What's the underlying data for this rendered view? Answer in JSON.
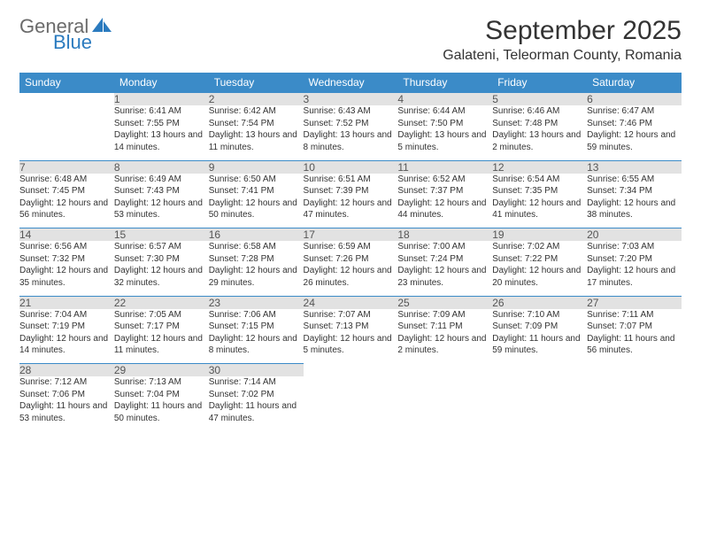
{
  "brand": {
    "name1": "General",
    "name2": "Blue"
  },
  "title": "September 2025",
  "location": "Galateni, Teleorman County, Romania",
  "colors": {
    "header_bg": "#3b8bc8",
    "header_text": "#ffffff",
    "daynum_bg": "#e2e2e2",
    "daynum_border": "#3b8bc8",
    "text": "#333333",
    "brand_gray": "#6b6b6b",
    "brand_blue": "#2b7bbf"
  },
  "typography": {
    "title_fontsize": 30,
    "location_fontsize": 16,
    "header_fontsize": 12,
    "daynum_fontsize": 12,
    "cell_fontsize": 10
  },
  "days_of_week": [
    "Sunday",
    "Monday",
    "Tuesday",
    "Wednesday",
    "Thursday",
    "Friday",
    "Saturday"
  ],
  "weeks": [
    {
      "nums": [
        "",
        "1",
        "2",
        "3",
        "4",
        "5",
        "6"
      ],
      "cells": [
        {
          "empty": true
        },
        {
          "sunrise": "Sunrise: 6:41 AM",
          "sunset": "Sunset: 7:55 PM",
          "daylight": "Daylight: 13 hours and 14 minutes."
        },
        {
          "sunrise": "Sunrise: 6:42 AM",
          "sunset": "Sunset: 7:54 PM",
          "daylight": "Daylight: 13 hours and 11 minutes."
        },
        {
          "sunrise": "Sunrise: 6:43 AM",
          "sunset": "Sunset: 7:52 PM",
          "daylight": "Daylight: 13 hours and 8 minutes."
        },
        {
          "sunrise": "Sunrise: 6:44 AM",
          "sunset": "Sunset: 7:50 PM",
          "daylight": "Daylight: 13 hours and 5 minutes."
        },
        {
          "sunrise": "Sunrise: 6:46 AM",
          "sunset": "Sunset: 7:48 PM",
          "daylight": "Daylight: 13 hours and 2 minutes."
        },
        {
          "sunrise": "Sunrise: 6:47 AM",
          "sunset": "Sunset: 7:46 PM",
          "daylight": "Daylight: 12 hours and 59 minutes."
        }
      ]
    },
    {
      "nums": [
        "7",
        "8",
        "9",
        "10",
        "11",
        "12",
        "13"
      ],
      "cells": [
        {
          "sunrise": "Sunrise: 6:48 AM",
          "sunset": "Sunset: 7:45 PM",
          "daylight": "Daylight: 12 hours and 56 minutes."
        },
        {
          "sunrise": "Sunrise: 6:49 AM",
          "sunset": "Sunset: 7:43 PM",
          "daylight": "Daylight: 12 hours and 53 minutes."
        },
        {
          "sunrise": "Sunrise: 6:50 AM",
          "sunset": "Sunset: 7:41 PM",
          "daylight": "Daylight: 12 hours and 50 minutes."
        },
        {
          "sunrise": "Sunrise: 6:51 AM",
          "sunset": "Sunset: 7:39 PM",
          "daylight": "Daylight: 12 hours and 47 minutes."
        },
        {
          "sunrise": "Sunrise: 6:52 AM",
          "sunset": "Sunset: 7:37 PM",
          "daylight": "Daylight: 12 hours and 44 minutes."
        },
        {
          "sunrise": "Sunrise: 6:54 AM",
          "sunset": "Sunset: 7:35 PM",
          "daylight": "Daylight: 12 hours and 41 minutes."
        },
        {
          "sunrise": "Sunrise: 6:55 AM",
          "sunset": "Sunset: 7:34 PM",
          "daylight": "Daylight: 12 hours and 38 minutes."
        }
      ]
    },
    {
      "nums": [
        "14",
        "15",
        "16",
        "17",
        "18",
        "19",
        "20"
      ],
      "cells": [
        {
          "sunrise": "Sunrise: 6:56 AM",
          "sunset": "Sunset: 7:32 PM",
          "daylight": "Daylight: 12 hours and 35 minutes."
        },
        {
          "sunrise": "Sunrise: 6:57 AM",
          "sunset": "Sunset: 7:30 PM",
          "daylight": "Daylight: 12 hours and 32 minutes."
        },
        {
          "sunrise": "Sunrise: 6:58 AM",
          "sunset": "Sunset: 7:28 PM",
          "daylight": "Daylight: 12 hours and 29 minutes."
        },
        {
          "sunrise": "Sunrise: 6:59 AM",
          "sunset": "Sunset: 7:26 PM",
          "daylight": "Daylight: 12 hours and 26 minutes."
        },
        {
          "sunrise": "Sunrise: 7:00 AM",
          "sunset": "Sunset: 7:24 PM",
          "daylight": "Daylight: 12 hours and 23 minutes."
        },
        {
          "sunrise": "Sunrise: 7:02 AM",
          "sunset": "Sunset: 7:22 PM",
          "daylight": "Daylight: 12 hours and 20 minutes."
        },
        {
          "sunrise": "Sunrise: 7:03 AM",
          "sunset": "Sunset: 7:20 PM",
          "daylight": "Daylight: 12 hours and 17 minutes."
        }
      ]
    },
    {
      "nums": [
        "21",
        "22",
        "23",
        "24",
        "25",
        "26",
        "27"
      ],
      "cells": [
        {
          "sunrise": "Sunrise: 7:04 AM",
          "sunset": "Sunset: 7:19 PM",
          "daylight": "Daylight: 12 hours and 14 minutes."
        },
        {
          "sunrise": "Sunrise: 7:05 AM",
          "sunset": "Sunset: 7:17 PM",
          "daylight": "Daylight: 12 hours and 11 minutes."
        },
        {
          "sunrise": "Sunrise: 7:06 AM",
          "sunset": "Sunset: 7:15 PM",
          "daylight": "Daylight: 12 hours and 8 minutes."
        },
        {
          "sunrise": "Sunrise: 7:07 AM",
          "sunset": "Sunset: 7:13 PM",
          "daylight": "Daylight: 12 hours and 5 minutes."
        },
        {
          "sunrise": "Sunrise: 7:09 AM",
          "sunset": "Sunset: 7:11 PM",
          "daylight": "Daylight: 12 hours and 2 minutes."
        },
        {
          "sunrise": "Sunrise: 7:10 AM",
          "sunset": "Sunset: 7:09 PM",
          "daylight": "Daylight: 11 hours and 59 minutes."
        },
        {
          "sunrise": "Sunrise: 7:11 AM",
          "sunset": "Sunset: 7:07 PM",
          "daylight": "Daylight: 11 hours and 56 minutes."
        }
      ]
    },
    {
      "nums": [
        "28",
        "29",
        "30",
        "",
        "",
        "",
        ""
      ],
      "cells": [
        {
          "sunrise": "Sunrise: 7:12 AM",
          "sunset": "Sunset: 7:06 PM",
          "daylight": "Daylight: 11 hours and 53 minutes."
        },
        {
          "sunrise": "Sunrise: 7:13 AM",
          "sunset": "Sunset: 7:04 PM",
          "daylight": "Daylight: 11 hours and 50 minutes."
        },
        {
          "sunrise": "Sunrise: 7:14 AM",
          "sunset": "Sunset: 7:02 PM",
          "daylight": "Daylight: 11 hours and 47 minutes."
        },
        {
          "empty": true
        },
        {
          "empty": true
        },
        {
          "empty": true
        },
        {
          "empty": true
        }
      ]
    }
  ]
}
